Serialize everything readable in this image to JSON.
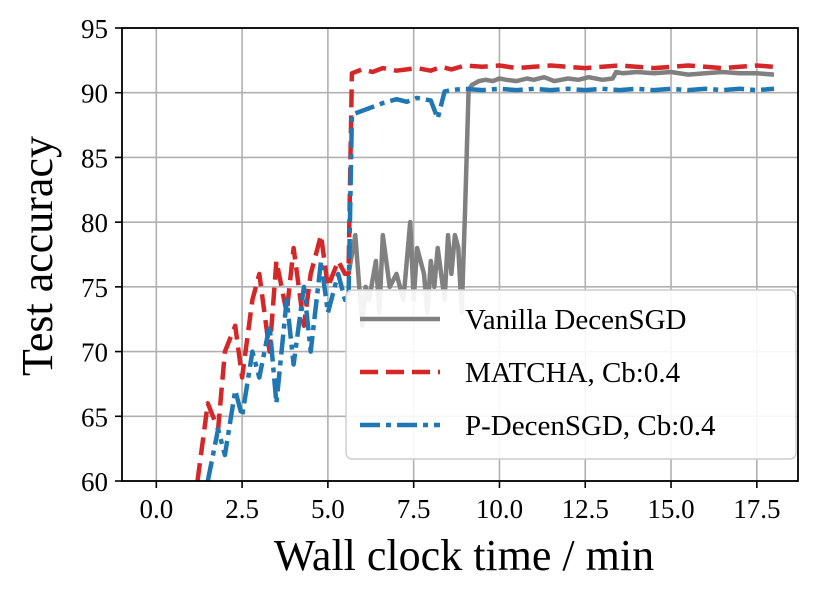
{
  "chart_data": {
    "type": "line",
    "title": "",
    "xlabel": "Wall clock time / min",
    "ylabel": "Test accuracy",
    "xlim": [
      -1.0,
      18.7
    ],
    "ylim": [
      60,
      95
    ],
    "grid": true,
    "xticks": [
      0.0,
      2.5,
      5.0,
      7.5,
      10.0,
      12.5,
      15.0,
      17.5
    ],
    "xtick_labels": [
      "0.0",
      "2.5",
      "5.0",
      "7.5",
      "10.0",
      "12.5",
      "15.0",
      "17.5"
    ],
    "yticks": [
      60,
      65,
      70,
      75,
      80,
      85,
      90,
      95
    ],
    "ytick_labels": [
      "60",
      "65",
      "70",
      "75",
      "80",
      "85",
      "90",
      "95"
    ],
    "legend_position": "lower-right",
    "series": [
      {
        "name": "Vanilla DecenSGD",
        "legend_label": "Vanilla DecenSGD",
        "color": "#808080",
        "style": "solid",
        "x": [
          5.6,
          5.8,
          6.0,
          6.1,
          6.2,
          6.4,
          6.5,
          6.6,
          6.8,
          7.0,
          7.2,
          7.3,
          7.4,
          7.5,
          7.6,
          7.8,
          7.9,
          8.0,
          8.1,
          8.2,
          8.4,
          8.5,
          8.6,
          8.7,
          8.8,
          8.9,
          9.0,
          9.1,
          9.2,
          9.4,
          9.6,
          9.8,
          10.0,
          10.2,
          10.5,
          10.8,
          11.0,
          11.3,
          11.6,
          12.0,
          12.3,
          12.6,
          13.0,
          13.3,
          13.4,
          13.6,
          14.0,
          14.5,
          15.0,
          15.5,
          16.0,
          16.5,
          17.0,
          17.5,
          18.0
        ],
        "y": [
          76,
          79,
          72,
          75,
          74,
          77,
          73,
          79,
          75,
          76,
          74,
          77,
          80,
          74,
          78,
          76,
          73,
          77,
          75,
          78,
          74,
          79,
          76,
          79,
          78,
          73,
          81,
          90.2,
          90.6,
          90.9,
          91.0,
          90.9,
          91.1,
          91.0,
          90.9,
          91.1,
          91.0,
          91.2,
          90.9,
          91.1,
          91.0,
          91.2,
          91.0,
          91.1,
          91.6,
          91.5,
          91.6,
          91.5,
          91.6,
          91.4,
          91.5,
          91.6,
          91.5,
          91.5,
          91.4
        ]
      },
      {
        "name": "MATCHA, Cb:0.4",
        "legend_label": "MATCHA, Cb:0.4",
        "color": "#d62728",
        "style": "dashed",
        "x": [
          1.2,
          1.5,
          1.8,
          2.0,
          2.3,
          2.5,
          2.8,
          3.0,
          3.3,
          3.5,
          3.8,
          4.0,
          4.3,
          4.5,
          4.8,
          5.0,
          5.3,
          5.5,
          5.6,
          5.7,
          6.0,
          6.3,
          6.6,
          7.0,
          7.3,
          7.6,
          8.0,
          8.3,
          8.6,
          9.0,
          9.5,
          10.0,
          10.5,
          11.0,
          11.5,
          12.0,
          12.5,
          13.0,
          13.5,
          14.0,
          14.5,
          15.0,
          15.5,
          16.0,
          16.5,
          17.0,
          17.5,
          18.0
        ],
        "y": [
          60,
          66,
          64,
          70,
          72,
          68,
          74,
          76,
          70,
          77,
          73,
          78,
          72,
          76,
          79,
          75,
          77,
          76,
          76,
          91.5,
          91.8,
          91.6,
          91.9,
          91.7,
          91.8,
          91.9,
          91.7,
          92.0,
          91.8,
          92.1,
          92.0,
          92.1,
          91.9,
          92.0,
          92.1,
          92.0,
          91.9,
          92.0,
          92.1,
          92.0,
          91.9,
          92.0,
          92.1,
          92.0,
          91.9,
          92.0,
          92.1,
          92.0
        ]
      },
      {
        "name": "P-DecenSGD, Cb:0.4",
        "legend_label": "P-DecenSGD, Cb:0.4",
        "color": "#1f77b4",
        "style": "dashdot",
        "x": [
          1.5,
          1.8,
          2.0,
          2.3,
          2.5,
          2.8,
          3.0,
          3.3,
          3.5,
          3.8,
          4.0,
          4.3,
          4.5,
          4.8,
          5.0,
          5.3,
          5.5,
          5.6,
          5.7,
          6.0,
          6.3,
          6.6,
          7.0,
          7.3,
          7.6,
          8.0,
          8.2,
          8.4,
          8.6,
          9.0,
          9.5,
          10.0,
          10.5,
          11.0,
          11.5,
          12.0,
          12.5,
          13.0,
          13.5,
          14.0,
          14.5,
          15.0,
          15.5,
          16.0,
          16.5,
          17.0,
          17.5,
          18.0
        ],
        "y": [
          60,
          64,
          62,
          67,
          65,
          70,
          68,
          72,
          66,
          74,
          69,
          75,
          70,
          77,
          73,
          76,
          74,
          74,
          88.3,
          88.6,
          88.9,
          89.2,
          89.5,
          89.3,
          89.6,
          89.4,
          88.0,
          90.1,
          90.2,
          90.3,
          90.2,
          90.3,
          90.2,
          90.3,
          90.2,
          90.3,
          90.2,
          90.3,
          90.2,
          90.3,
          90.2,
          90.3,
          90.2,
          90.3,
          90.2,
          90.3,
          90.2,
          90.3
        ]
      }
    ]
  }
}
